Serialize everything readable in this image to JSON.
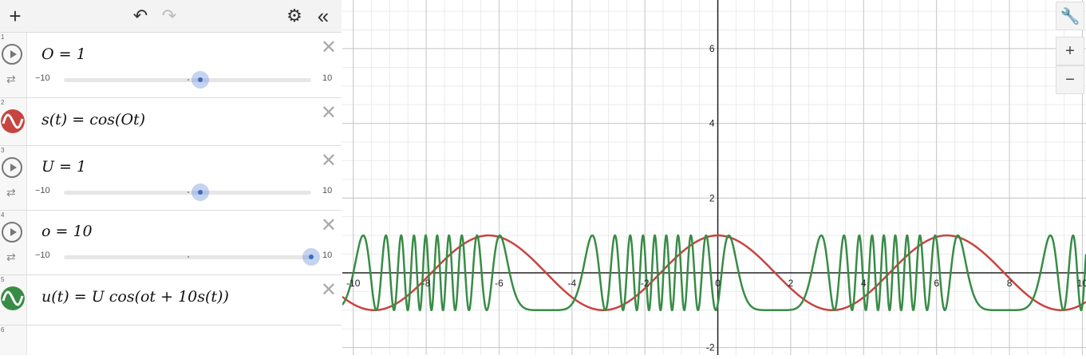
{
  "toolbar": {
    "add": "+",
    "undo": "↶",
    "redo": "↷",
    "settings": "⚙",
    "collapse": "«"
  },
  "expressions": [
    {
      "index": "1",
      "kind": "slider",
      "text": "O = 1",
      "min": "−10",
      "max": "10",
      "fraction": 0.55
    },
    {
      "index": "2",
      "kind": "function",
      "text": "s(t) = cos(Ot)",
      "color": "#c74440"
    },
    {
      "index": "3",
      "kind": "slider",
      "text": "U = 1",
      "min": "−10",
      "max": "10",
      "fraction": 0.55
    },
    {
      "index": "4",
      "kind": "slider",
      "text": "o = 10",
      "min": "−10",
      "max": "10",
      "fraction": 1.0
    },
    {
      "index": "5",
      "kind": "function",
      "text": "u(t) = U cos(ot + 10s(t))",
      "color": "#388c46"
    },
    {
      "index": "6",
      "kind": "empty"
    }
  ],
  "graph_controls": {
    "wrench": "🔧",
    "zoom_in": "+",
    "zoom_out": "−"
  },
  "chart_data": {
    "type": "line",
    "xlim": [
      -10.3,
      10.1
    ],
    "ylim": [
      -2.2,
      7.3
    ],
    "x_ticks": [
      "-10",
      "-8",
      "-6",
      "-4",
      "-2",
      "0",
      "2",
      "4",
      "6",
      "8",
      "10"
    ],
    "y_ticks": [
      "-2",
      "2",
      "4",
      "6"
    ],
    "grid": true,
    "series": [
      {
        "expr": "cos(t)",
        "color": "#c74440"
      },
      {
        "expr": "cos(10t + 10cos(t))",
        "color": "#388c46"
      }
    ]
  }
}
